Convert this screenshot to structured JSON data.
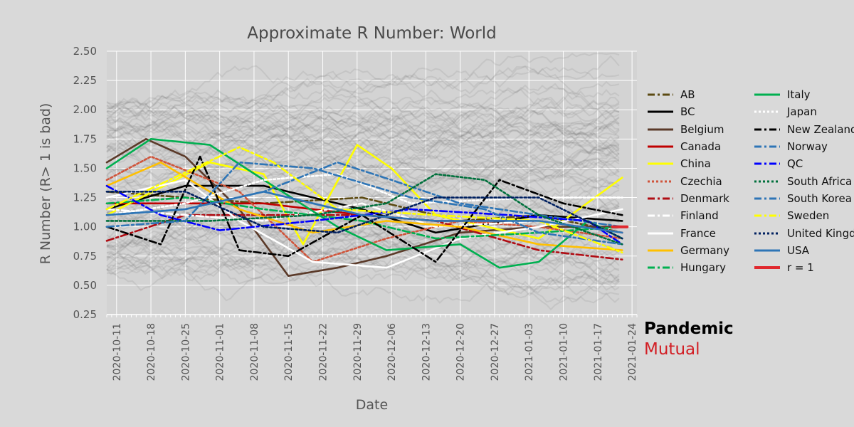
{
  "chart_data": {
    "type": "line",
    "title": "Approximate R Number: World",
    "xlabel": "Date",
    "ylabel": "R Number (R> 1 is bad)",
    "ylim": [
      0.25,
      2.5
    ],
    "yticks": [
      "0.25",
      "0.50",
      "0.75",
      "1.00",
      "1.25",
      "1.50",
      "1.75",
      "2.00",
      "2.25",
      "2.50"
    ],
    "xlim": [
      "2020-10-09",
      "2021-01-25"
    ],
    "xticks": [
      "2020-10-11",
      "2020-10-18",
      "2020-10-25",
      "2020-11-01",
      "2020-11-08",
      "2020-11-15",
      "2020-11-22",
      "2020-11-29",
      "2020-12-06",
      "2020-12-13",
      "2020-12-20",
      "2020-12-27",
      "2021-01-03",
      "2021-01-10",
      "2021-01-17",
      "2021-01-24"
    ],
    "grid": true,
    "background_series": "many unlabelled country lines in translucent grey",
    "series": [
      {
        "name": "AB",
        "color": "#5c4a12",
        "dash": "dashdot",
        "values": [
          [
            "2020-10-09",
            1.3
          ],
          [
            "2020-10-25",
            1.25
          ],
          [
            "2020-11-10",
            1.2
          ],
          [
            "2020-11-30",
            1.25
          ],
          [
            "2020-12-20",
            1.05
          ],
          [
            "2021-01-05",
            1.1
          ],
          [
            "2021-01-22",
            0.95
          ]
        ]
      },
      {
        "name": "BC",
        "color": "#000000",
        "dash": "solid",
        "values": [
          [
            "2020-10-09",
            1.15
          ],
          [
            "2020-10-25",
            1.35
          ],
          [
            "2020-11-10",
            1.35
          ],
          [
            "2020-11-30",
            1.15
          ],
          [
            "2020-12-15",
            0.95
          ],
          [
            "2021-01-05",
            1.1
          ],
          [
            "2021-01-22",
            1.05
          ]
        ]
      },
      {
        "name": "Belgium",
        "color": "#5b3a29",
        "dash": "solid",
        "values": [
          [
            "2020-10-09",
            1.55
          ],
          [
            "2020-10-17",
            1.75
          ],
          [
            "2020-10-25",
            1.6
          ],
          [
            "2020-11-05",
            1.15
          ],
          [
            "2020-11-15",
            0.58
          ],
          [
            "2020-11-25",
            0.65
          ],
          [
            "2020-12-05",
            0.75
          ],
          [
            "2020-12-20",
            0.95
          ],
          [
            "2021-01-05",
            1.0
          ],
          [
            "2021-01-22",
            1.0
          ]
        ]
      },
      {
        "name": "Canada",
        "color": "#c00000",
        "dash": "solid",
        "values": [
          [
            "2020-10-09",
            1.2
          ],
          [
            "2020-10-25",
            1.2
          ],
          [
            "2020-11-10",
            1.2
          ],
          [
            "2020-11-30",
            1.1
          ],
          [
            "2020-12-15",
            1.05
          ],
          [
            "2021-01-05",
            1.05
          ],
          [
            "2021-01-22",
            0.95
          ]
        ]
      },
      {
        "name": "China",
        "color": "#ffff00",
        "dash": "solid",
        "values": [
          [
            "2020-10-09",
            1.1
          ],
          [
            "2020-10-30",
            1.55
          ],
          [
            "2020-11-10",
            1.45
          ],
          [
            "2020-11-18",
            0.85
          ],
          [
            "2020-11-29",
            1.7
          ],
          [
            "2020-12-06",
            1.5
          ],
          [
            "2020-12-15",
            1.1
          ],
          [
            "2021-01-05",
            0.9
          ],
          [
            "2021-01-22",
            1.42
          ]
        ]
      },
      {
        "name": "Czechia",
        "color": "#d0543a",
        "dash": "dot",
        "values": [
          [
            "2020-10-09",
            1.4
          ],
          [
            "2020-10-18",
            1.6
          ],
          [
            "2020-11-05",
            1.3
          ],
          [
            "2020-11-20",
            0.7
          ],
          [
            "2020-12-05",
            0.9
          ],
          [
            "2020-12-20",
            1.05
          ],
          [
            "2021-01-05",
            1.0
          ],
          [
            "2021-01-22",
            0.9
          ]
        ]
      },
      {
        "name": "Denmark",
        "color": "#b00d14",
        "dash": "dashdot",
        "values": [
          [
            "2020-10-09",
            0.88
          ],
          [
            "2020-10-25",
            1.1
          ],
          [
            "2020-11-10",
            1.1
          ],
          [
            "2020-11-30",
            1.1
          ],
          [
            "2020-12-15",
            1.05
          ],
          [
            "2021-01-05",
            0.8
          ],
          [
            "2021-01-22",
            0.72
          ]
        ]
      },
      {
        "name": "Finland",
        "color": "#ffffff",
        "dash": "dashdot",
        "values": [
          [
            "2020-10-09",
            1.15
          ],
          [
            "2020-10-25",
            1.1
          ],
          [
            "2020-11-10",
            1.05
          ],
          [
            "2020-11-30",
            1.2
          ],
          [
            "2020-12-15",
            1.0
          ],
          [
            "2021-01-05",
            1.05
          ],
          [
            "2021-01-22",
            0.95
          ]
        ]
      },
      {
        "name": "France",
        "color": "#ffffff",
        "dash": "solid",
        "values": [
          [
            "2020-10-09",
            1.25
          ],
          [
            "2020-10-25",
            1.4
          ],
          [
            "2020-11-05",
            1.05
          ],
          [
            "2020-11-20",
            0.7
          ],
          [
            "2020-12-05",
            0.65
          ],
          [
            "2020-12-20",
            0.9
          ],
          [
            "2021-01-05",
            1.0
          ],
          [
            "2021-01-22",
            1.15
          ]
        ]
      },
      {
        "name": "Germany",
        "color": "#ffc000",
        "dash": "solid",
        "values": [
          [
            "2020-10-09",
            1.35
          ],
          [
            "2020-10-20",
            1.55
          ],
          [
            "2020-11-05",
            1.15
          ],
          [
            "2020-11-20",
            0.95
          ],
          [
            "2020-12-05",
            1.05
          ],
          [
            "2020-12-20",
            1.0
          ],
          [
            "2021-01-05",
            0.85
          ],
          [
            "2021-01-22",
            0.8
          ]
        ]
      },
      {
        "name": "Hungary",
        "color": "#00b050",
        "dash": "dashdot",
        "values": [
          [
            "2020-10-09",
            1.2
          ],
          [
            "2020-10-25",
            1.25
          ],
          [
            "2020-11-10",
            1.15
          ],
          [
            "2020-11-30",
            1.05
          ],
          [
            "2020-12-15",
            0.9
          ],
          [
            "2021-01-05",
            0.95
          ],
          [
            "2021-01-22",
            1.0
          ]
        ]
      },
      {
        "name": "Italy",
        "color": "#00b050",
        "dash": "solid",
        "values": [
          [
            "2020-10-09",
            1.5
          ],
          [
            "2020-10-18",
            1.75
          ],
          [
            "2020-10-30",
            1.7
          ],
          [
            "2020-11-10",
            1.4
          ],
          [
            "2020-11-25",
            1.0
          ],
          [
            "2020-12-05",
            0.8
          ],
          [
            "2020-12-20",
            0.85
          ],
          [
            "2020-12-28",
            0.65
          ],
          [
            "2021-01-05",
            0.7
          ],
          [
            "2021-01-15",
            1.05
          ],
          [
            "2021-01-22",
            0.9
          ]
        ]
      },
      {
        "name": "Japan",
        "color": "#ffffff",
        "dash": "dot",
        "values": [
          [
            "2020-10-09",
            1.1
          ],
          [
            "2020-10-25",
            1.2
          ],
          [
            "2020-11-10",
            1.4
          ],
          [
            "2020-11-25",
            1.45
          ],
          [
            "2020-12-10",
            1.2
          ],
          [
            "2021-01-05",
            1.25
          ],
          [
            "2021-01-22",
            1.25
          ]
        ]
      },
      {
        "name": "New Zealand",
        "color": "#000000",
        "dash": "dashdot",
        "values": [
          [
            "2020-10-09",
            1.0
          ],
          [
            "2020-10-20",
            0.85
          ],
          [
            "2020-10-28",
            1.6
          ],
          [
            "2020-11-05",
            0.8
          ],
          [
            "2020-11-15",
            0.75
          ],
          [
            "2020-11-30",
            1.1
          ],
          [
            "2020-12-15",
            0.7
          ],
          [
            "2020-12-28",
            1.4
          ],
          [
            "2021-01-10",
            1.2
          ],
          [
            "2021-01-22",
            1.1
          ]
        ]
      },
      {
        "name": "Norway",
        "color": "#2e75b6",
        "dash": "dashdot",
        "values": [
          [
            "2020-10-09",
            1.1
          ],
          [
            "2020-10-25",
            1.15
          ],
          [
            "2020-11-10",
            1.3
          ],
          [
            "2020-11-25",
            1.55
          ],
          [
            "2020-12-06",
            1.4
          ],
          [
            "2020-12-20",
            1.2
          ],
          [
            "2021-01-05",
            1.1
          ],
          [
            "2021-01-22",
            1.0
          ]
        ]
      },
      {
        "name": "QC",
        "color": "#0000ff",
        "dash": "dashdot",
        "values": [
          [
            "2020-10-09",
            1.35
          ],
          [
            "2020-10-20",
            1.1
          ],
          [
            "2020-11-01",
            0.97
          ],
          [
            "2020-11-20",
            1.05
          ],
          [
            "2020-12-10",
            1.15
          ],
          [
            "2020-12-30",
            1.1
          ],
          [
            "2021-01-15",
            1.05
          ],
          [
            "2021-01-22",
            0.85
          ]
        ]
      },
      {
        "name": "South Africa",
        "color": "#00703c",
        "dash": "dot",
        "values": [
          [
            "2020-10-09",
            1.05
          ],
          [
            "2020-10-30",
            1.05
          ],
          [
            "2020-11-20",
            1.1
          ],
          [
            "2020-12-05",
            1.2
          ],
          [
            "2020-12-15",
            1.45
          ],
          [
            "2020-12-25",
            1.4
          ],
          [
            "2021-01-05",
            1.1
          ],
          [
            "2021-01-22",
            0.85
          ]
        ]
      },
      {
        "name": "South Korea",
        "color": "#2e75b6",
        "dash": "dashdot",
        "values": [
          [
            "2020-10-09",
            1.0
          ],
          [
            "2020-10-25",
            1.05
          ],
          [
            "2020-11-05",
            1.55
          ],
          [
            "2020-11-20",
            1.5
          ],
          [
            "2020-12-10",
            1.25
          ],
          [
            "2020-12-25",
            1.15
          ],
          [
            "2021-01-05",
            0.95
          ],
          [
            "2021-01-22",
            0.85
          ]
        ]
      },
      {
        "name": "Sweden",
        "color": "#ffff00",
        "dash": "dashdot",
        "values": [
          [
            "2020-10-09",
            1.15
          ],
          [
            "2020-11-05",
            1.68
          ],
          [
            "2020-11-12",
            1.55
          ],
          [
            "2020-11-25",
            1.15
          ],
          [
            "2020-12-15",
            1.1
          ],
          [
            "2021-01-05",
            1.05
          ],
          [
            "2021-01-22",
            0.78
          ]
        ]
      },
      {
        "name": "United Kingdom",
        "color": "#002060",
        "dash": "dot",
        "values": [
          [
            "2020-10-09",
            1.3
          ],
          [
            "2020-10-25",
            1.3
          ],
          [
            "2020-11-10",
            1.0
          ],
          [
            "2020-11-25",
            0.95
          ],
          [
            "2020-12-15",
            1.25
          ],
          [
            "2021-01-05",
            1.25
          ],
          [
            "2021-01-22",
            0.9
          ]
        ]
      },
      {
        "name": "USA",
        "color": "#2e75b6",
        "dash": "solid",
        "values": [
          [
            "2020-10-09",
            1.1
          ],
          [
            "2020-10-25",
            1.15
          ],
          [
            "2020-11-10",
            1.3
          ],
          [
            "2020-11-30",
            1.1
          ],
          [
            "2020-12-15",
            1.05
          ],
          [
            "2021-01-05",
            1.05
          ],
          [
            "2021-01-22",
            0.95
          ]
        ]
      },
      {
        "name": "r = 1",
        "color": "#e0282e",
        "dash": "solid",
        "width": 4,
        "values": [
          [
            "2021-01-20",
            1.0
          ],
          [
            "2021-01-23",
            1.0
          ]
        ]
      }
    ],
    "legend_position": "right"
  },
  "brand": {
    "line1": "Pandemic",
    "line2": "Mutual"
  }
}
